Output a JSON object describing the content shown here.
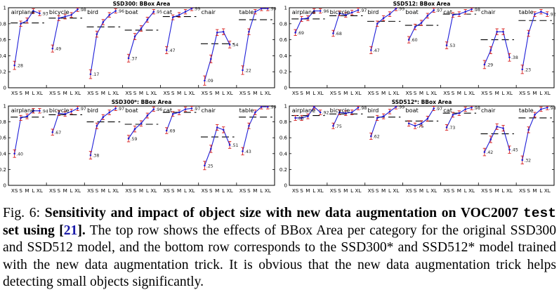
{
  "chart_data": [
    {
      "type": "line",
      "title": "SSD300: BBox Area",
      "ylim": [
        0,
        1
      ],
      "yticks": [
        "0",
        "0.2",
        "0.4",
        "0.6",
        "0.8",
        "1"
      ],
      "size_labels": [
        "XS",
        "S",
        "M",
        "L",
        "XL"
      ],
      "categories": [
        {
          "name": "airplane",
          "values": [
            0.28,
            0.8,
            0.84,
            0.96,
            0.93
          ],
          "avg": 0.81
        },
        {
          "name": "bicycle",
          "values": [
            0.49,
            0.87,
            0.89,
            0.91,
            0.98
          ],
          "avg": 0.87
        },
        {
          "name": "bird",
          "values": [
            0.17,
            0.67,
            0.82,
            0.91,
            0.96
          ],
          "avg": 0.76
        },
        {
          "name": "boat",
          "values": [
            0.37,
            0.64,
            0.74,
            0.85,
            0.95
          ],
          "avg": 0.72
        },
        {
          "name": "cat",
          "values": [
            0.47,
            0.88,
            0.91,
            0.95,
            0.99
          ],
          "avg": 0.89
        },
        {
          "name": "chair",
          "values": [
            0.09,
            0.36,
            0.69,
            0.7,
            0.54
          ],
          "avg": 0.55
        },
        {
          "name": "table",
          "values": [
            0.22,
            0.7,
            0.95,
            0.99,
            0.99
          ],
          "avg": 0.85
        }
      ]
    },
    {
      "type": "line",
      "title": "SSD512: BBox Area",
      "ylim": [
        0,
        1
      ],
      "yticks": [
        "0",
        "0.2",
        "0.4",
        "0.6",
        "0.8",
        "1"
      ],
      "size_labels": [
        "XS",
        "S",
        "M",
        "L",
        "XL"
      ],
      "categories": [
        {
          "name": "airplane",
          "values": [
            0.69,
            0.86,
            0.87,
            0.96,
            0.96
          ],
          "avg": 0.86
        },
        {
          "name": "bicycle",
          "values": [
            0.68,
            0.93,
            0.91,
            0.94,
            0.97
          ],
          "avg": 0.9
        },
        {
          "name": "bird",
          "values": [
            0.47,
            0.8,
            0.87,
            0.92,
            0.99
          ],
          "avg": 0.83
        },
        {
          "name": "boat",
          "values": [
            0.6,
            0.76,
            0.81,
            0.9,
            0.97
          ],
          "avg": 0.78
        },
        {
          "name": "cat",
          "values": [
            0.53,
            0.91,
            0.92,
            0.95,
            0.98
          ],
          "avg": 0.92
        },
        {
          "name": "chair",
          "values": [
            0.29,
            0.47,
            0.7,
            0.7,
            0.38
          ],
          "avg": 0.6
        },
        {
          "name": "table",
          "values": [
            0.23,
            0.68,
            0.92,
            0.95,
            0.92
          ],
          "avg": 0.84
        }
      ]
    },
    {
      "type": "line",
      "title": "SSD300*: BBox Area",
      "ylim": [
        0,
        1
      ],
      "yticks": [
        "0",
        "0.2",
        "0.4",
        "0.6",
        "0.8",
        "1"
      ],
      "size_labels": [
        "XS",
        "S",
        "M",
        "L",
        "XL"
      ],
      "categories": [
        {
          "name": "airplane",
          "values": [
            0.4,
            0.85,
            0.87,
            0.94,
            0.94
          ],
          "avg": 0.86
        },
        {
          "name": "bicycle",
          "values": [
            0.67,
            0.91,
            0.9,
            0.93,
            0.97
          ],
          "avg": 0.89
        },
        {
          "name": "bird",
          "values": [
            0.38,
            0.75,
            0.86,
            0.92,
            0.97
          ],
          "avg": 0.8
        },
        {
          "name": "boat",
          "values": [
            0.59,
            0.71,
            0.78,
            0.88,
            0.96
          ],
          "avg": 0.77
        },
        {
          "name": "cat",
          "values": [
            0.69,
            0.9,
            0.92,
            0.96,
            0.97
          ],
          "avg": 0.92
        },
        {
          "name": "chair",
          "values": [
            0.25,
            0.46,
            0.73,
            0.7,
            0.51
          ],
          "avg": 0.61
        },
        {
          "name": "table",
          "values": [
            0.43,
            0.75,
            0.92,
            0.99,
            0.99
          ],
          "avg": 0.86
        }
      ]
    },
    {
      "type": "line",
      "title": "SSD512*: BBox Area",
      "ylim": [
        0,
        1
      ],
      "yticks": [
        "0",
        "0.2",
        "0.4",
        "0.6",
        "0.8",
        "1"
      ],
      "size_labels": [
        "XS",
        "S",
        "M",
        "L",
        "XL"
      ],
      "categories": [
        {
          "name": "airplane",
          "values": [
            0.85,
            0.85,
            0.87,
            0.99,
            0.92
          ],
          "avg": 0.88
        },
        {
          "name": "bicycle",
          "values": [
            0.75,
            0.92,
            0.91,
            0.92,
            0.98
          ],
          "avg": 0.9
        },
        {
          "name": "bird",
          "values": [
            0.62,
            0.85,
            0.87,
            0.93,
            0.99
          ],
          "avg": 0.86
        },
        {
          "name": "boat",
          "values": [
            0.78,
            0.75,
            0.78,
            0.84,
            0.97
          ],
          "avg": 0.81
        },
        {
          "name": "cat",
          "values": [
            0.73,
            0.89,
            0.91,
            0.96,
            0.98
          ],
          "avg": 0.91
        },
        {
          "name": "chair",
          "values": [
            0.42,
            0.58,
            0.74,
            0.72,
            0.45
          ],
          "avg": 0.65
        },
        {
          "name": "table",
          "values": [
            0.32,
            0.7,
            0.89,
            0.96,
            0.98
          ],
          "avg": 0.85
        }
      ]
    }
  ],
  "caption": {
    "fig_label": "Fig. 6: ",
    "bold_text": "Sensitivity and impact of object size with new data augmentation on VOC2007 ",
    "mono_text": "test",
    "bold_text2": " set using ",
    "cite_open": "[",
    "cite_num": "21",
    "cite_close": "].",
    "body": " The top row shows the effects of BBox Area per category for the original SSD300 and SSD512 model, and the bottom row corresponds to the SSD300* and SSD512* model trained with the new data augmentation trick. It is obvious that the new data augmentation trick helps detecting small objects significantly."
  },
  "colors": {
    "line": "#1d1dd8",
    "errorbar": "#d62020",
    "avgline": "#000000",
    "axis": "#000000"
  }
}
